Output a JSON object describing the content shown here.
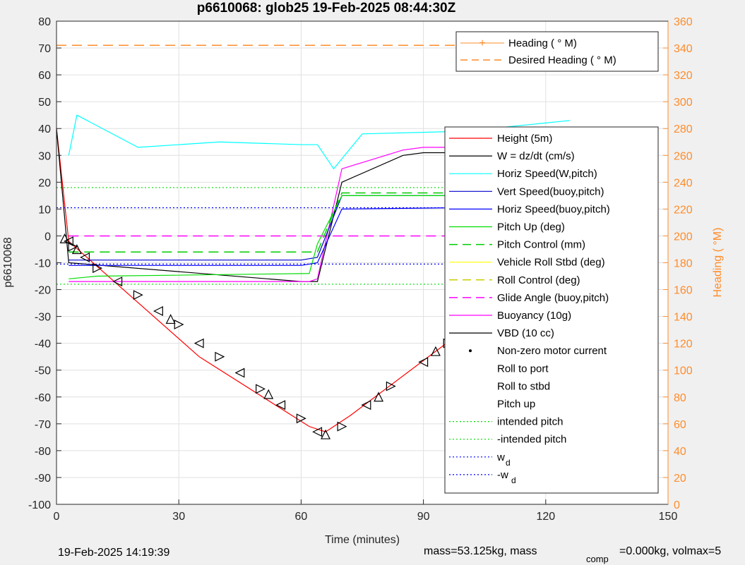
{
  "chart_data": {
    "type": "line",
    "title": "p6610068: glob25 19-Feb-2025 08:44:30Z",
    "xlabel": "Time (minutes)",
    "ylabel": "p6610068",
    "y2label": "Heading (  °M)",
    "xlim": [
      0,
      150
    ],
    "ylim": [
      -100,
      80
    ],
    "y2lim": [
      0,
      360
    ],
    "xticks": [
      0,
      30,
      60,
      90,
      120,
      150
    ],
    "yticks": [
      80,
      70,
      60,
      50,
      40,
      30,
      20,
      10,
      0,
      -10,
      -20,
      -30,
      -40,
      -50,
      -60,
      -70,
      -80,
      -90,
      -100
    ],
    "y2ticks": [
      360,
      340,
      320,
      300,
      280,
      260,
      240,
      220,
      200,
      180,
      160,
      140,
      120,
      100,
      80,
      60,
      40,
      20,
      0
    ],
    "grid": true,
    "colors": {
      "height": "#ff0000",
      "w": "#000000",
      "horiz_speed_w": "#00ffff",
      "vert_speed": "#0000cd",
      "horiz_speed_buoy": "#0000ff",
      "pitch_up": "#00dd00",
      "pitch_control": "#00cc00",
      "roll": "#ffff00",
      "roll_control": "#cccc00",
      "glide_angle": "#ff00ff",
      "buoyancy": "#ff00ff",
      "vbd": "#000000",
      "heading": "#ff8c2a",
      "desired_heading": "#ff8c2a",
      "intended_pitch": "#00dd00",
      "wd": "#0000ff"
    },
    "legend_top": {
      "placement": "top-right",
      "entries": [
        "Heading (  ° M)",
        "Desired Heading (    ° M)"
      ]
    },
    "legend_main": {
      "placement": "right",
      "entries": [
        "Height (5m)",
        "W = dz/dt (cm/s)",
        "Horiz Speed(W,pitch)",
        "Vert Speed(buoy,pitch)",
        "Horiz Speed(buoy,pitch)",
        "Pitch Up (deg)",
        "Pitch Control (mm)",
        "Vehicle Roll Stbd (deg)",
        "Roll Control (deg)",
        "Glide Angle (buoy,pitch)",
        "Buoyancy (10g)",
        "VBD (10 cc)",
        "Non-zero motor current",
        "Roll to port",
        "Roll to stbd",
        "Pitch up",
        "intended pitch",
        "-intended pitch",
        "w",
        "-w"
      ],
      "subscript": "d"
    },
    "series": [
      {
        "name": "Height (5m)",
        "x": [
          0,
          3,
          35,
          62,
          66,
          72,
          100,
          126
        ],
        "y": [
          40,
          -2,
          -45,
          -71,
          -73,
          -67,
          -35,
          0
        ]
      },
      {
        "name": "VBD (10 cc)",
        "x": [
          0,
          3,
          60,
          64,
          70,
          85,
          90,
          126
        ],
        "y": [
          40,
          -10,
          -17,
          -17,
          20,
          30,
          31,
          31
        ]
      },
      {
        "name": "Buoyancy (10g)",
        "x": [
          3,
          62,
          64,
          70,
          85,
          90,
          126
        ],
        "y": [
          -17,
          -17,
          -16,
          25,
          32,
          33,
          33
        ]
      },
      {
        "name": "Glide Angle (buoy,pitch)",
        "x": [
          3,
          63,
          66,
          126
        ],
        "y": [
          0,
          0,
          0,
          0
        ]
      },
      {
        "name": "Horiz Speed(W,pitch)",
        "x": [
          3,
          5,
          20,
          40,
          60,
          64,
          68,
          75,
          100,
          126
        ],
        "y": [
          30,
          45,
          33,
          35,
          34,
          34,
          25,
          38,
          39,
          43
        ]
      },
      {
        "name": "Vert Speed(buoy,pitch)",
        "x": [
          3,
          60,
          64,
          70,
          126
        ],
        "y": [
          -9,
          -9,
          -8,
          15,
          15
        ]
      },
      {
        "name": "Horiz Speed(buoy,pitch)",
        "x": [
          3,
          60,
          64,
          70,
          126
        ],
        "y": [
          -11,
          -11,
          -10,
          10,
          11
        ]
      },
      {
        "name": "Pitch Up (deg)",
        "x": [
          3,
          10,
          62,
          64,
          70,
          126
        ],
        "y": [
          -16,
          -15,
          -14,
          -3,
          15,
          15
        ]
      },
      {
        "name": "Pitch Control (mm)",
        "x": [
          3,
          62,
          64,
          70,
          126
        ],
        "y": [
          -6,
          -6,
          -6,
          16,
          16
        ]
      },
      {
        "name": "intended pitch",
        "x": [
          0,
          126
        ],
        "y": [
          18,
          18
        ]
      },
      {
        "name": "-intended pitch",
        "x": [
          0,
          126
        ],
        "y": [
          -18,
          -18
        ]
      },
      {
        "name": "w",
        "x": [
          0,
          126
        ],
        "y": [
          10.5,
          10.5
        ]
      },
      {
        "name": "-w",
        "x": [
          0,
          126
        ],
        "y": [
          -10.5,
          -10.5
        ]
      },
      {
        "name": "Desired Heading (    ° M)",
        "x": [
          0,
          126
        ],
        "y2": [
          342,
          342
        ]
      }
    ],
    "markers": {
      "roll_to_port": [
        [
          3,
          -2
        ],
        [
          7,
          -8
        ],
        [
          15,
          -17
        ],
        [
          25,
          -28
        ],
        [
          35,
          -40
        ],
        [
          45,
          -51
        ],
        [
          55,
          -63
        ],
        [
          64,
          -73
        ],
        [
          76,
          -63
        ],
        [
          90,
          -47
        ],
        [
          103,
          -32
        ],
        [
          116,
          -16
        ],
        [
          125,
          -2
        ]
      ],
      "roll_to_stbd": [
        [
          4,
          -4
        ],
        [
          10,
          -12
        ],
        [
          20,
          -22
        ],
        [
          30,
          -33
        ],
        [
          40,
          -45
        ],
        [
          50,
          -57
        ],
        [
          60,
          -68
        ],
        [
          70,
          -71
        ],
        [
          82,
          -56
        ],
        [
          96,
          -40
        ],
        [
          110,
          -23
        ],
        [
          121,
          -7
        ]
      ],
      "pitch_up": [
        [
          2,
          -1
        ],
        [
          5,
          -5
        ],
        [
          28,
          -31
        ],
        [
          52,
          -59
        ],
        [
          66,
          -74
        ],
        [
          79,
          -60
        ],
        [
          93,
          -43
        ],
        [
          106,
          -28
        ],
        [
          118,
          -13
        ],
        [
          126,
          0
        ]
      ]
    }
  },
  "footer": {
    "timestamp": "19-Feb-2025 14:19:39",
    "mass_text": "mass=53.125kg, mass",
    "comp_sub": "comp",
    "volmax_text": "=0.000kg, volmax=5"
  }
}
